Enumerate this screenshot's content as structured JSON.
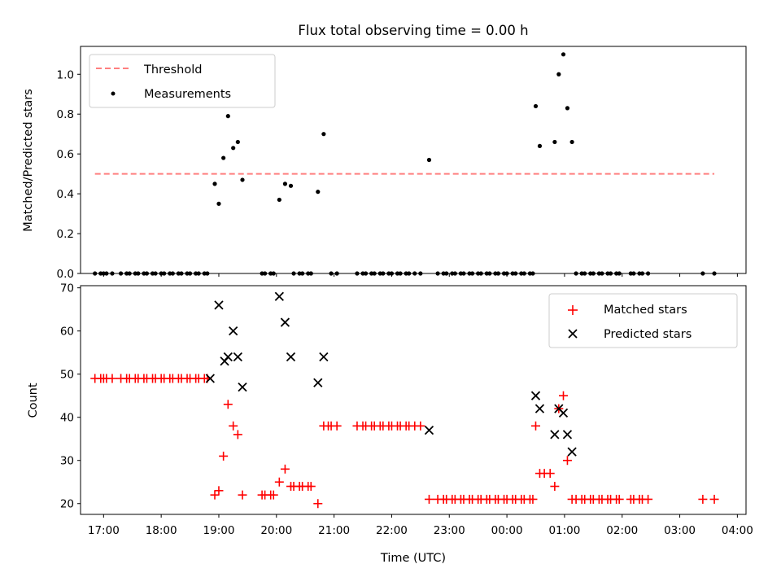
{
  "title": "Flux total observing time = 0.00 h",
  "xlabel": "Time (UTC)",
  "x_ticks": [
    "17:00",
    "18:00",
    "19:00",
    "20:00",
    "21:00",
    "22:00",
    "23:00",
    "00:00",
    "01:00",
    "02:00",
    "03:00",
    "04:00"
  ],
  "chart_data": [
    {
      "type": "scatter",
      "ylabel": "Matched/Predicted stars",
      "ylim": [
        0,
        1.14
      ],
      "xlim_hours": [
        16.6,
        28.15
      ],
      "y_ticks": [
        "0.0",
        "0.2",
        "0.4",
        "0.6",
        "0.8",
        "1.0"
      ],
      "threshold": {
        "label": "Threshold",
        "value": 0.5,
        "x_range": [
          16.85,
          27.6
        ],
        "color": "#ff7f7f"
      },
      "series": [
        {
          "name": "Measurements",
          "color": "#000000",
          "points": [
            [
              16.85,
              0
            ],
            [
              16.95,
              0
            ],
            [
              17.0,
              0
            ],
            [
              17.05,
              0
            ],
            [
              17.15,
              0
            ],
            [
              17.3,
              0
            ],
            [
              17.4,
              0
            ],
            [
              17.45,
              0
            ],
            [
              17.55,
              0
            ],
            [
              17.6,
              0
            ],
            [
              17.7,
              0
            ],
            [
              17.75,
              0
            ],
            [
              17.85,
              0
            ],
            [
              17.9,
              0
            ],
            [
              18.0,
              0
            ],
            [
              18.05,
              0
            ],
            [
              18.15,
              0
            ],
            [
              18.2,
              0
            ],
            [
              18.3,
              0
            ],
            [
              18.35,
              0
            ],
            [
              18.45,
              0
            ],
            [
              18.5,
              0
            ],
            [
              18.6,
              0
            ],
            [
              18.65,
              0
            ],
            [
              18.75,
              0
            ],
            [
              18.8,
              0
            ],
            [
              18.93,
              0.45
            ],
            [
              19.0,
              0.35
            ],
            [
              19.08,
              0.58
            ],
            [
              19.16,
              0.79
            ],
            [
              19.25,
              0.63
            ],
            [
              19.33,
              0.66
            ],
            [
              19.41,
              0.47
            ],
            [
              19.75,
              0
            ],
            [
              19.8,
              0
            ],
            [
              19.9,
              0
            ],
            [
              19.95,
              0
            ],
            [
              20.05,
              0.37
            ],
            [
              20.15,
              0.45
            ],
            [
              20.25,
              0.44
            ],
            [
              20.3,
              0
            ],
            [
              20.4,
              0
            ],
            [
              20.45,
              0
            ],
            [
              20.55,
              0
            ],
            [
              20.6,
              0
            ],
            [
              20.72,
              0.41
            ],
            [
              20.82,
              0.7
            ],
            [
              20.95,
              0
            ],
            [
              21.05,
              0
            ],
            [
              21.4,
              0
            ],
            [
              21.5,
              0
            ],
            [
              21.55,
              0
            ],
            [
              21.65,
              0
            ],
            [
              21.7,
              0
            ],
            [
              21.8,
              0
            ],
            [
              21.85,
              0
            ],
            [
              21.95,
              0
            ],
            [
              22.0,
              0
            ],
            [
              22.1,
              0
            ],
            [
              22.15,
              0
            ],
            [
              22.25,
              0
            ],
            [
              22.3,
              0
            ],
            [
              22.4,
              0
            ],
            [
              22.5,
              0
            ],
            [
              22.65,
              0.57
            ],
            [
              22.8,
              0
            ],
            [
              22.9,
              0
            ],
            [
              22.95,
              0
            ],
            [
              23.05,
              0
            ],
            [
              23.1,
              0
            ],
            [
              23.2,
              0
            ],
            [
              23.25,
              0
            ],
            [
              23.35,
              0
            ],
            [
              23.4,
              0
            ],
            [
              23.5,
              0
            ],
            [
              23.55,
              0
            ],
            [
              23.65,
              0
            ],
            [
              23.7,
              0
            ],
            [
              23.8,
              0
            ],
            [
              23.85,
              0
            ],
            [
              23.95,
              0
            ],
            [
              24.0,
              0
            ],
            [
              24.1,
              0
            ],
            [
              24.15,
              0
            ],
            [
              24.25,
              0
            ],
            [
              24.3,
              0
            ],
            [
              24.4,
              0
            ],
            [
              24.45,
              0
            ],
            [
              24.5,
              0.84
            ],
            [
              24.57,
              0.64
            ],
            [
              24.83,
              0.66
            ],
            [
              24.9,
              1.0
            ],
            [
              24.98,
              1.1
            ],
            [
              25.05,
              0.83
            ],
            [
              25.13,
              0.66
            ],
            [
              25.2,
              0
            ],
            [
              25.3,
              0
            ],
            [
              25.35,
              0
            ],
            [
              25.45,
              0
            ],
            [
              25.5,
              0
            ],
            [
              25.6,
              0
            ],
            [
              25.65,
              0
            ],
            [
              25.75,
              0
            ],
            [
              25.8,
              0
            ],
            [
              25.9,
              0
            ],
            [
              25.95,
              0
            ],
            [
              26.15,
              0
            ],
            [
              26.2,
              0
            ],
            [
              26.3,
              0
            ],
            [
              26.35,
              0
            ],
            [
              26.45,
              0
            ],
            [
              27.4,
              0
            ],
            [
              27.6,
              0
            ]
          ]
        }
      ]
    },
    {
      "type": "scatter",
      "ylabel": "Count",
      "ylim": [
        17.5,
        70.5
      ],
      "xlim_hours": [
        16.6,
        28.15
      ],
      "y_ticks": [
        "20",
        "30",
        "40",
        "50",
        "60",
        "70"
      ],
      "series": [
        {
          "name": "Matched stars",
          "marker": "+",
          "color": "#ff0000",
          "points": [
            [
              16.85,
              49
            ],
            [
              16.95,
              49
            ],
            [
              17.0,
              49
            ],
            [
              17.05,
              49
            ],
            [
              17.15,
              49
            ],
            [
              17.3,
              49
            ],
            [
              17.4,
              49
            ],
            [
              17.45,
              49
            ],
            [
              17.55,
              49
            ],
            [
              17.6,
              49
            ],
            [
              17.7,
              49
            ],
            [
              17.75,
              49
            ],
            [
              17.85,
              49
            ],
            [
              17.9,
              49
            ],
            [
              18.0,
              49
            ],
            [
              18.05,
              49
            ],
            [
              18.15,
              49
            ],
            [
              18.2,
              49
            ],
            [
              18.3,
              49
            ],
            [
              18.35,
              49
            ],
            [
              18.45,
              49
            ],
            [
              18.5,
              49
            ],
            [
              18.6,
              49
            ],
            [
              18.65,
              49
            ],
            [
              18.75,
              49
            ],
            [
              18.8,
              49
            ],
            [
              18.93,
              22
            ],
            [
              19.0,
              23
            ],
            [
              19.08,
              31
            ],
            [
              19.16,
              43
            ],
            [
              19.25,
              38
            ],
            [
              19.33,
              36
            ],
            [
              19.41,
              22
            ],
            [
              19.75,
              22
            ],
            [
              19.8,
              22
            ],
            [
              19.9,
              22
            ],
            [
              19.95,
              22
            ],
            [
              20.05,
              25
            ],
            [
              20.15,
              28
            ],
            [
              20.25,
              24
            ],
            [
              20.3,
              24
            ],
            [
              20.4,
              24
            ],
            [
              20.45,
              24
            ],
            [
              20.55,
              24
            ],
            [
              20.6,
              24
            ],
            [
              20.72,
              20
            ],
            [
              20.82,
              38
            ],
            [
              20.9,
              38
            ],
            [
              20.95,
              38
            ],
            [
              21.05,
              38
            ],
            [
              21.4,
              38
            ],
            [
              21.5,
              38
            ],
            [
              21.55,
              38
            ],
            [
              21.65,
              38
            ],
            [
              21.7,
              38
            ],
            [
              21.8,
              38
            ],
            [
              21.85,
              38
            ],
            [
              21.95,
              38
            ],
            [
              22.0,
              38
            ],
            [
              22.1,
              38
            ],
            [
              22.15,
              38
            ],
            [
              22.25,
              38
            ],
            [
              22.3,
              38
            ],
            [
              22.4,
              38
            ],
            [
              22.5,
              38
            ],
            [
              22.65,
              21
            ],
            [
              22.8,
              21
            ],
            [
              22.9,
              21
            ],
            [
              22.95,
              21
            ],
            [
              23.05,
              21
            ],
            [
              23.1,
              21
            ],
            [
              23.2,
              21
            ],
            [
              23.25,
              21
            ],
            [
              23.35,
              21
            ],
            [
              23.4,
              21
            ],
            [
              23.5,
              21
            ],
            [
              23.55,
              21
            ],
            [
              23.65,
              21
            ],
            [
              23.7,
              21
            ],
            [
              23.8,
              21
            ],
            [
              23.85,
              21
            ],
            [
              23.95,
              21
            ],
            [
              24.0,
              21
            ],
            [
              24.1,
              21
            ],
            [
              24.15,
              21
            ],
            [
              24.25,
              21
            ],
            [
              24.3,
              21
            ],
            [
              24.4,
              21
            ],
            [
              24.45,
              21
            ],
            [
              24.5,
              38
            ],
            [
              24.57,
              27
            ],
            [
              24.65,
              27
            ],
            [
              24.75,
              27
            ],
            [
              24.83,
              24
            ],
            [
              24.9,
              42
            ],
            [
              24.98,
              45
            ],
            [
              25.05,
              30
            ],
            [
              25.13,
              21
            ],
            [
              25.2,
              21
            ],
            [
              25.3,
              21
            ],
            [
              25.35,
              21
            ],
            [
              25.45,
              21
            ],
            [
              25.5,
              21
            ],
            [
              25.6,
              21
            ],
            [
              25.65,
              21
            ],
            [
              25.75,
              21
            ],
            [
              25.8,
              21
            ],
            [
              25.9,
              21
            ],
            [
              25.95,
              21
            ],
            [
              26.15,
              21
            ],
            [
              26.2,
              21
            ],
            [
              26.3,
              21
            ],
            [
              26.35,
              21
            ],
            [
              26.45,
              21
            ],
            [
              27.4,
              21
            ],
            [
              27.6,
              21
            ]
          ]
        },
        {
          "name": "Predicted stars",
          "marker": "x",
          "color": "#000000",
          "points": [
            [
              18.85,
              49
            ],
            [
              19.0,
              66
            ],
            [
              19.1,
              53
            ],
            [
              19.16,
              54
            ],
            [
              19.25,
              60
            ],
            [
              19.33,
              54
            ],
            [
              19.41,
              47
            ],
            [
              20.05,
              68
            ],
            [
              20.15,
              62
            ],
            [
              20.25,
              54
            ],
            [
              20.72,
              48
            ],
            [
              20.82,
              54
            ],
            [
              22.65,
              37
            ],
            [
              24.5,
              45
            ],
            [
              24.57,
              42
            ],
            [
              24.83,
              36
            ],
            [
              24.9,
              42
            ],
            [
              24.98,
              41
            ],
            [
              25.05,
              36
            ],
            [
              25.13,
              32
            ]
          ]
        }
      ]
    }
  ]
}
